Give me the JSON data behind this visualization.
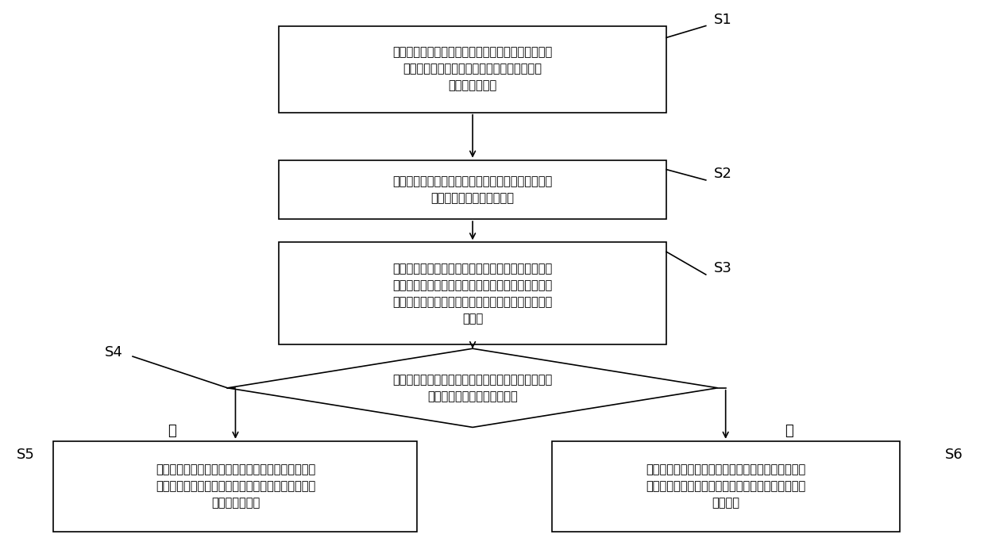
{
  "bg_color": "#ffffff",
  "box_edge_color": "#000000",
  "box_face_color": "#ffffff",
  "text_color": "#000000",
  "font_size": 10.5,
  "label_font_size": 13,
  "yes_no_font_size": 13,
  "s1_text": "获取待优化公交特征信息，包括公交运行线路、站点\n信息、车辆在当前时刻的实时位置、实时速度\n及运营车辆信息",
  "s2_text": "获取待优化公交途经交叉口信息，包括交叉口位置及\n交叉口交通信号灯配时信息",
  "s3_text": "基于公交特征信息和交叉口信息计算车辆达到下一交\n叉口的时间区间，根据车辆达到下一交叉口的时间区\n间与该交叉口红灯对应的时间区间的关系确定车速引\n导策略",
  "s4_text": "在站点上客结束后确定公交车的当前载客率，并判断\n当前载客率是否大于设定阈值",
  "s5_text": "采用考虑乘客舒适度的轨迹优化策略并结合确定的车\n速引导策略建立轨迹优化模型，并求解模型得到各子\n区间的优化轨迹",
  "s6_text": "采用油耗最优的轨迹优化策略并结合确定的车速引导\n策略建立轨迹优化模型，并求解模型得到各子区间的\n优化轨迹",
  "yes_label": "是",
  "no_label": "否",
  "labels": [
    "S1",
    "S2",
    "S3",
    "S4",
    "S5",
    "S6"
  ]
}
